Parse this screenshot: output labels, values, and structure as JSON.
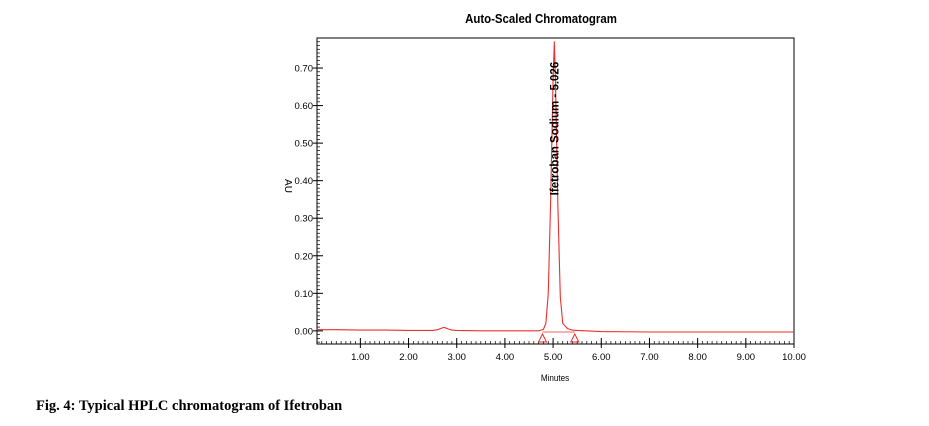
{
  "figure": {
    "caption": "Fig. 4: Typical HPLC chromatogram of Ifetroban"
  },
  "chart_data": {
    "type": "line",
    "title": "Auto-Scaled Chromatogram",
    "xlabel": "Minutes",
    "ylabel": "AU",
    "xlim": [
      0.1,
      10.0
    ],
    "ylim": [
      -0.035,
      0.78
    ],
    "x_ticks": [
      "1.00",
      "2.00",
      "3.00",
      "4.00",
      "5.00",
      "6.00",
      "7.00",
      "8.00",
      "9.00",
      "10.00"
    ],
    "y_ticks": [
      "0.00",
      "0.10",
      "0.20",
      "0.30",
      "0.40",
      "0.50",
      "0.60",
      "0.70"
    ],
    "grid": false,
    "line_color": "#e8302c",
    "series": [
      {
        "x": [
          0.1,
          0.5,
          1.0,
          1.5,
          2.0,
          2.5,
          2.6,
          2.7,
          2.75,
          2.8,
          2.9,
          3.0,
          3.5,
          4.0,
          4.5,
          4.7,
          4.8,
          4.85,
          4.9,
          4.95,
          5.0,
          5.026,
          5.05,
          5.1,
          5.15,
          5.2,
          5.3,
          5.4,
          5.5,
          6.0,
          7.0,
          8.0,
          9.0,
          10.0
        ],
        "y": [
          0.003,
          0.003,
          0.002,
          0.002,
          0.001,
          0.001,
          0.003,
          0.008,
          0.009,
          0.006,
          0.002,
          0.001,
          0.0,
          0.0,
          0.0,
          0.0,
          0.004,
          0.02,
          0.1,
          0.35,
          0.67,
          0.77,
          0.66,
          0.33,
          0.09,
          0.02,
          0.006,
          0.002,
          0.001,
          -0.002,
          -0.003,
          -0.003,
          -0.003,
          -0.003
        ]
      }
    ],
    "peak": {
      "label": "Ifetroban Sodium - 5.026",
      "x": 5.026,
      "y": 0.77
    },
    "integration_markers": {
      "start": 4.78,
      "end": 5.45,
      "y": -0.003
    }
  }
}
